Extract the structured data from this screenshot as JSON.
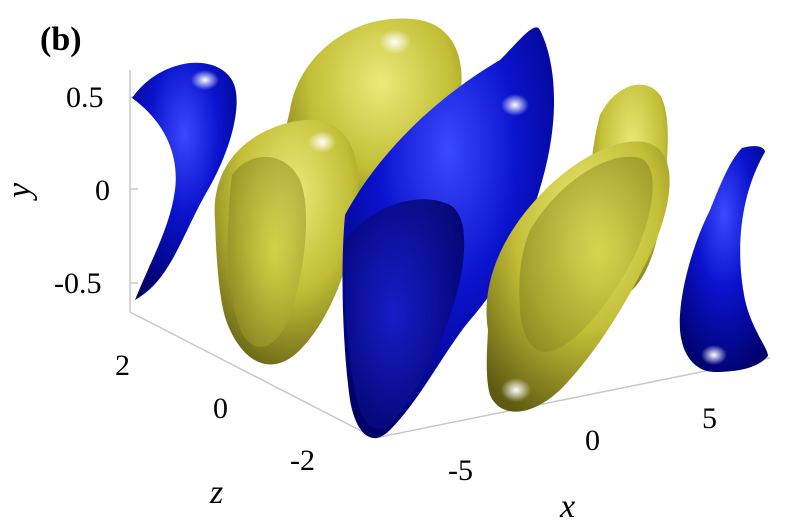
{
  "panel_label": "(b)",
  "axes": {
    "y": {
      "label": "y",
      "ticks": [
        "0.5",
        "0",
        "-0.5"
      ]
    },
    "z": {
      "label": "z",
      "ticks": [
        "2",
        "0",
        "-2"
      ]
    },
    "x": {
      "label": "x",
      "ticks": [
        "-5",
        "0",
        "5"
      ]
    }
  },
  "colors": {
    "blue_lobe": "#0a0fc8",
    "blue_lobe_dark": "#00006e",
    "yellow_lobe": "#c8c43a",
    "yellow_lobe_dark": "#6e6a18",
    "highlight": "#ffffff"
  }
}
